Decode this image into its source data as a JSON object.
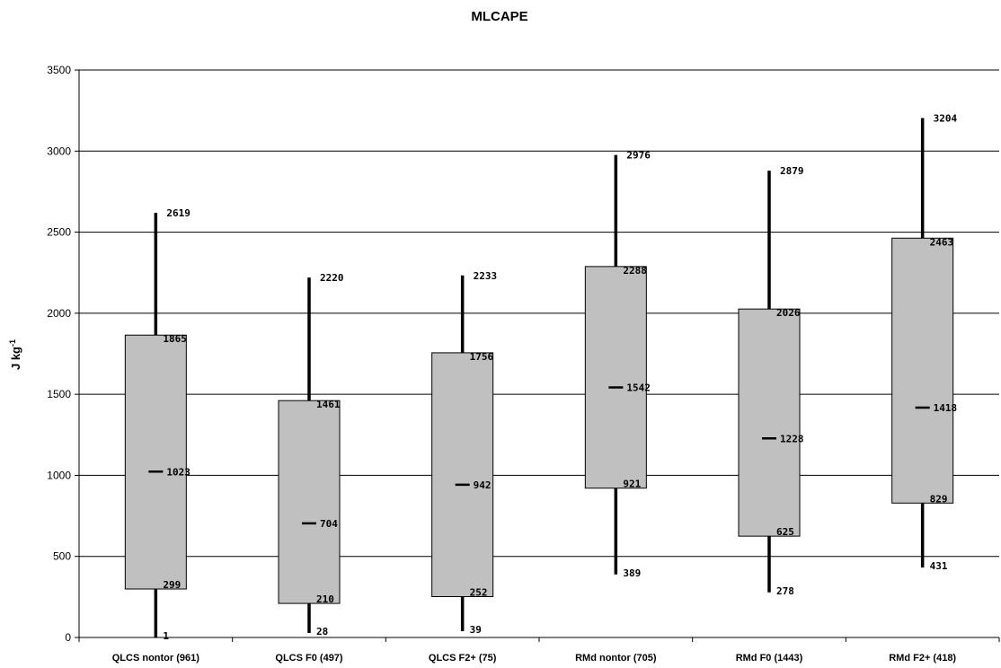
{
  "chart_data": {
    "type": "boxplot",
    "title": "MLCAPE",
    "ylabel": "J kg",
    "ylabel_superscript": "-1",
    "ylim": [
      0,
      3500
    ],
    "yticks": [
      0,
      500,
      1000,
      1500,
      2000,
      2500,
      3000,
      3500
    ],
    "grid": true,
    "categories": [
      "QLCS nontor (961)",
      "QLCS F0 (497)",
      "QLCS F2+ (75)",
      "RMd nontor (705)",
      "RMd F0 (1443)",
      "RMd F2+ (418)"
    ],
    "series": [
      {
        "boxes": [
          {
            "min": 1,
            "q1": 299,
            "median": 1023,
            "q3": 1865,
            "max": 2619
          },
          {
            "min": 28,
            "q1": 210,
            "median": 704,
            "q3": 1461,
            "max": 2220
          },
          {
            "min": 39,
            "q1": 252,
            "median": 942,
            "q3": 1756,
            "max": 2233
          },
          {
            "min": 389,
            "q1": 921,
            "median": 1542,
            "q3": 2288,
            "max": 2976
          },
          {
            "min": 278,
            "q1": 625,
            "median": 1228,
            "q3": 2026,
            "max": 2879
          },
          {
            "min": 431,
            "q1": 829,
            "median": 1418,
            "q3": 2463,
            "max": 3204
          }
        ]
      }
    ],
    "box_fill": "#c0c0c0",
    "box_stroke": "#000000",
    "whisker_color": "#000000",
    "grid_color": "#000000"
  }
}
